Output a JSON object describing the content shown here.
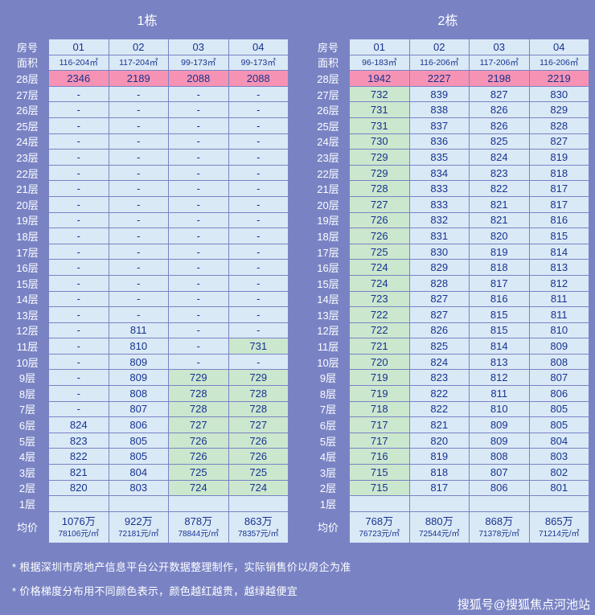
{
  "colors": {
    "background": "#7983C4",
    "cell_blue": "#DAE9F6",
    "cell_pink": "#F693B4",
    "cell_green": "#CBE7CE",
    "text_navy": "#17338F",
    "text_white": "#FFFFFF"
  },
  "color_rule": {
    "pink_min": 1000,
    "green_max": 799
  },
  "chart_data": [
    {
      "type": "table",
      "title": "1栋",
      "row_header_label": "房号",
      "area_label": "面积",
      "avg_label": "均价",
      "columns": [
        "01",
        "02",
        "03",
        "04"
      ],
      "areas": [
        "116-204㎡",
        "117-204㎡",
        "99-173㎡",
        "99-173㎡"
      ],
      "floors": [
        {
          "floor": "28层",
          "values": [
            "2346",
            "2189",
            "2088",
            "2088"
          ]
        },
        {
          "floor": "27层",
          "values": [
            "-",
            "-",
            "-",
            "-"
          ]
        },
        {
          "floor": "26层",
          "values": [
            "-",
            "-",
            "-",
            "-"
          ]
        },
        {
          "floor": "25层",
          "values": [
            "-",
            "-",
            "-",
            "-"
          ]
        },
        {
          "floor": "24层",
          "values": [
            "-",
            "-",
            "-",
            "-"
          ]
        },
        {
          "floor": "23层",
          "values": [
            "-",
            "-",
            "-",
            "-"
          ]
        },
        {
          "floor": "22层",
          "values": [
            "-",
            "-",
            "-",
            "-"
          ]
        },
        {
          "floor": "21层",
          "values": [
            "-",
            "-",
            "-",
            "-"
          ]
        },
        {
          "floor": "20层",
          "values": [
            "-",
            "-",
            "-",
            "-"
          ]
        },
        {
          "floor": "19层",
          "values": [
            "-",
            "-",
            "-",
            "-"
          ]
        },
        {
          "floor": "18层",
          "values": [
            "-",
            "-",
            "-",
            "-"
          ]
        },
        {
          "floor": "17层",
          "values": [
            "-",
            "-",
            "-",
            "-"
          ]
        },
        {
          "floor": "16层",
          "values": [
            "-",
            "-",
            "-",
            "-"
          ]
        },
        {
          "floor": "15层",
          "values": [
            "-",
            "-",
            "-",
            "-"
          ]
        },
        {
          "floor": "14层",
          "values": [
            "-",
            "-",
            "-",
            "-"
          ]
        },
        {
          "floor": "13层",
          "values": [
            "-",
            "-",
            "-",
            "-"
          ]
        },
        {
          "floor": "12层",
          "values": [
            "-",
            "811",
            "-",
            "-"
          ]
        },
        {
          "floor": "11层",
          "values": [
            "-",
            "810",
            "-",
            "731"
          ]
        },
        {
          "floor": "10层",
          "values": [
            "-",
            "809",
            "-",
            "-"
          ]
        },
        {
          "floor": "9层",
          "values": [
            "-",
            "809",
            "729",
            "729"
          ]
        },
        {
          "floor": "8层",
          "values": [
            "-",
            "808",
            "728",
            "728"
          ]
        },
        {
          "floor": "7层",
          "values": [
            "-",
            "807",
            "728",
            "728"
          ]
        },
        {
          "floor": "6层",
          "values": [
            "824",
            "806",
            "727",
            "727"
          ]
        },
        {
          "floor": "5层",
          "values": [
            "823",
            "805",
            "726",
            "726"
          ]
        },
        {
          "floor": "4层",
          "values": [
            "822",
            "805",
            "726",
            "726"
          ]
        },
        {
          "floor": "3层",
          "values": [
            "821",
            "804",
            "725",
            "725"
          ]
        },
        {
          "floor": "2层",
          "values": [
            "820",
            "803",
            "724",
            "724"
          ]
        },
        {
          "floor": "1层",
          "values": [
            "",
            "",
            "",
            ""
          ]
        }
      ],
      "avg_prices": [
        {
          "total": "1076万",
          "per_sqm": "78106元/㎡"
        },
        {
          "total": "922万",
          "per_sqm": "72181元/㎡"
        },
        {
          "total": "878万",
          "per_sqm": "78844元/㎡"
        },
        {
          "total": "863万",
          "per_sqm": "78357元/㎡"
        }
      ]
    },
    {
      "type": "table",
      "title": "2栋",
      "row_header_label": "房号",
      "area_label": "面积",
      "avg_label": "均价",
      "columns": [
        "01",
        "02",
        "03",
        "04"
      ],
      "areas": [
        "96-183㎡",
        "116-206㎡",
        "117-206㎡",
        "116-206㎡"
      ],
      "floors": [
        {
          "floor": "28层",
          "values": [
            "1942",
            "2227",
            "2198",
            "2219"
          ]
        },
        {
          "floor": "27层",
          "values": [
            "732",
            "839",
            "827",
            "830"
          ]
        },
        {
          "floor": "26层",
          "values": [
            "731",
            "838",
            "826",
            "829"
          ]
        },
        {
          "floor": "25层",
          "values": [
            "731",
            "837",
            "826",
            "828"
          ]
        },
        {
          "floor": "24层",
          "values": [
            "730",
            "836",
            "825",
            "827"
          ]
        },
        {
          "floor": "23层",
          "values": [
            "729",
            "835",
            "824",
            "819"
          ]
        },
        {
          "floor": "22层",
          "values": [
            "729",
            "834",
            "823",
            "818"
          ]
        },
        {
          "floor": "21层",
          "values": [
            "728",
            "833",
            "822",
            "817"
          ]
        },
        {
          "floor": "20层",
          "values": [
            "727",
            "833",
            "821",
            "817"
          ]
        },
        {
          "floor": "19层",
          "values": [
            "726",
            "832",
            "821",
            "816"
          ]
        },
        {
          "floor": "18层",
          "values": [
            "726",
            "831",
            "820",
            "815"
          ]
        },
        {
          "floor": "17层",
          "values": [
            "725",
            "830",
            "819",
            "814"
          ]
        },
        {
          "floor": "16层",
          "values": [
            "724",
            "829",
            "818",
            "813"
          ]
        },
        {
          "floor": "15层",
          "values": [
            "724",
            "828",
            "817",
            "812"
          ]
        },
        {
          "floor": "14层",
          "values": [
            "723",
            "827",
            "816",
            "811"
          ]
        },
        {
          "floor": "13层",
          "values": [
            "722",
            "827",
            "815",
            "811"
          ]
        },
        {
          "floor": "12层",
          "values": [
            "722",
            "826",
            "815",
            "810"
          ]
        },
        {
          "floor": "11层",
          "values": [
            "721",
            "825",
            "814",
            "809"
          ]
        },
        {
          "floor": "10层",
          "values": [
            "720",
            "824",
            "813",
            "808"
          ]
        },
        {
          "floor": "9层",
          "values": [
            "719",
            "823",
            "812",
            "807"
          ]
        },
        {
          "floor": "8层",
          "values": [
            "719",
            "822",
            "811",
            "806"
          ]
        },
        {
          "floor": "7层",
          "values": [
            "718",
            "822",
            "810",
            "805"
          ]
        },
        {
          "floor": "6层",
          "values": [
            "717",
            "821",
            "809",
            "805"
          ]
        },
        {
          "floor": "5层",
          "values": [
            "717",
            "820",
            "809",
            "804"
          ]
        },
        {
          "floor": "4层",
          "values": [
            "716",
            "819",
            "808",
            "803"
          ]
        },
        {
          "floor": "3层",
          "values": [
            "715",
            "818",
            "807",
            "802"
          ]
        },
        {
          "floor": "2层",
          "values": [
            "715",
            "817",
            "806",
            "801"
          ]
        },
        {
          "floor": "1层",
          "values": [
            "",
            "",
            "",
            ""
          ]
        }
      ],
      "avg_prices": [
        {
          "total": "768万",
          "per_sqm": "76723元/㎡"
        },
        {
          "total": "880万",
          "per_sqm": "72544元/㎡"
        },
        {
          "total": "868万",
          "per_sqm": "71378元/㎡"
        },
        {
          "total": "865万",
          "per_sqm": "71214元/㎡"
        }
      ]
    }
  ],
  "footnotes": [
    "* 根据深圳市房地产信息平台公开数据整理制作，实际销售价以房企为准",
    "* 价格梯度分布用不同颜色表示，颜色越红越贵，越绿越便宜"
  ],
  "watermark": "搜狐号@搜狐焦点河池站"
}
